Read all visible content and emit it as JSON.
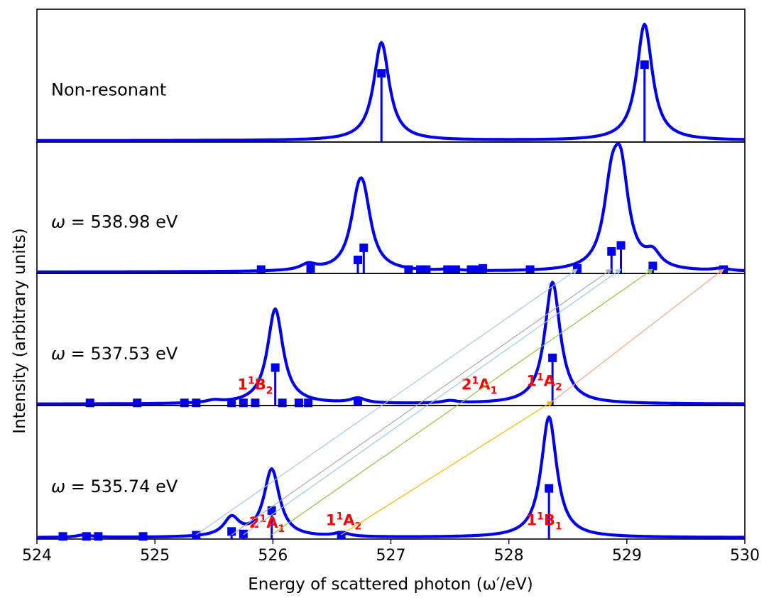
{
  "chart_data": {
    "type": "line",
    "xlabel": "Energy of scattered photon (ω′/eV)",
    "ylabel": "Intensity (arbitrary units)",
    "xlim": [
      524,
      530
    ],
    "xticks": [
      "524",
      "525",
      "526",
      "527",
      "528",
      "529",
      "530"
    ],
    "grid": false,
    "legend": "none",
    "line_color": "#0000ee",
    "panels": [
      {
        "label_prefix": "",
        "label_value": "Non-resonant",
        "ylim": [
          0,
          1.05
        ],
        "width": 0.08,
        "sticks": [
          [
            526.92,
            0.55
          ],
          [
            529.15,
            0.62
          ]
        ],
        "curve_peaks": [
          [
            526.92,
            0.8
          ],
          [
            529.15,
            0.95
          ]
        ],
        "state_labels": []
      },
      {
        "label_prefix": "ω",
        "label_value": " = 538.98 eV",
        "ylim": [
          0,
          1.05
        ],
        "width": 0.08,
        "sticks": [
          [
            525.9,
            0.02
          ],
          [
            526.32,
            0.03
          ],
          [
            526.72,
            0.1
          ],
          [
            526.77,
            0.2
          ],
          [
            527.15,
            0.02
          ],
          [
            527.25,
            0.02
          ],
          [
            527.3,
            0.02
          ],
          [
            527.48,
            0.02
          ],
          [
            527.55,
            0.02
          ],
          [
            527.68,
            0.02
          ],
          [
            527.75,
            0.02
          ],
          [
            527.78,
            0.03
          ],
          [
            528.18,
            0.02
          ],
          [
            528.58,
            0.03
          ],
          [
            528.87,
            0.17
          ],
          [
            528.95,
            0.22
          ],
          [
            529.22,
            0.05
          ],
          [
            529.82,
            0.02
          ]
        ],
        "curve_peaks": [
          [
            526.3,
            0.05
          ],
          [
            526.72,
            0.4
          ],
          [
            526.77,
            0.45
          ],
          [
            528.87,
            0.58
          ],
          [
            528.95,
            0.72
          ],
          [
            529.22,
            0.12
          ],
          [
            529.8,
            0.02
          ],
          [
            527.5,
            0.015
          ]
        ],
        "state_labels": []
      },
      {
        "label_prefix": "ω",
        "label_value": " = 537.53 eV",
        "ylim": [
          0,
          1.05
        ],
        "width": 0.08,
        "sticks": [
          [
            524.45,
            0.01
          ],
          [
            524.85,
            0.01
          ],
          [
            525.25,
            0.01
          ],
          [
            525.35,
            0.01
          ],
          [
            525.65,
            0.01
          ],
          [
            525.75,
            0.01
          ],
          [
            525.85,
            0.01
          ],
          [
            526.02,
            0.3
          ],
          [
            526.08,
            0.01
          ],
          [
            526.22,
            0.01
          ],
          [
            526.3,
            0.01
          ],
          [
            526.72,
            0.02
          ],
          [
            528.37,
            0.38
          ]
        ],
        "curve_peaks": [
          [
            526.02,
            0.78
          ],
          [
            526.72,
            0.04
          ],
          [
            528.37,
            1.0
          ],
          [
            525.5,
            0.02
          ],
          [
            527.5,
            0.02
          ]
        ],
        "state_labels": [
          {
            "text": "1",
            "sup": "1",
            "base": "B",
            "sub": "2",
            "x": 525.85,
            "y": 0.12
          },
          {
            "text": "2",
            "sup": "1",
            "base": "A",
            "sub": "1",
            "x": 527.75,
            "y": 0.12
          },
          {
            "text": "1",
            "sup": "1",
            "base": "A",
            "sub": "2",
            "x": 528.3,
            "y": 0.15
          }
        ]
      },
      {
        "label_prefix": "ω",
        "label_value": " = 535.74 eV",
        "ylim": [
          0,
          1.05
        ],
        "width": 0.08,
        "sticks": [
          [
            524.22,
            0.01
          ],
          [
            524.42,
            0.01
          ],
          [
            524.52,
            0.01
          ],
          [
            524.9,
            0.01
          ],
          [
            525.35,
            0.02
          ],
          [
            525.65,
            0.05
          ],
          [
            525.75,
            0.03
          ],
          [
            525.99,
            0.22
          ],
          [
            526.58,
            0.02
          ],
          [
            528.34,
            0.4
          ]
        ],
        "curve_peaks": [
          [
            525.65,
            0.15
          ],
          [
            525.99,
            0.55
          ],
          [
            526.58,
            0.03
          ],
          [
            528.34,
            0.98
          ],
          [
            524.4,
            0.02
          ]
        ],
        "state_labels": [
          {
            "text": "2",
            "sup": "1",
            "base": "A",
            "sub": "1",
            "x": 525.95,
            "y": 0.08
          },
          {
            "text": "1",
            "sup": "1",
            "base": "A",
            "sub": "2",
            "x": 526.6,
            "y": 0.1
          },
          {
            "text": "1",
            "sup": "1",
            "base": "B",
            "sub": "1",
            "x": 528.3,
            "y": 0.1
          }
        ]
      }
    ],
    "transitions": [
      {
        "from_panel": 3,
        "from_x": 525.35,
        "to_panel": 1,
        "to_x": 528.58,
        "color": "#a7c7e7"
      },
      {
        "from_panel": 3,
        "from_x": 525.65,
        "to_panel": 1,
        "to_x": 528.87,
        "color": "#aaaaaa"
      },
      {
        "from_panel": 3,
        "from_x": 525.75,
        "to_panel": 1,
        "to_x": 528.95,
        "color": "#9ec9ea"
      },
      {
        "from_panel": 3,
        "from_x": 525.99,
        "to_panel": 1,
        "to_x": 529.22,
        "color": "#8cc640"
      },
      {
        "from_panel": 3,
        "from_x": 526.58,
        "to_panel": 2,
        "to_x": 528.37,
        "color": "#f5b800"
      },
      {
        "from_panel": 2,
        "from_x": 528.37,
        "to_panel": 1,
        "to_x": 529.82,
        "color": "#f4a582"
      }
    ]
  }
}
